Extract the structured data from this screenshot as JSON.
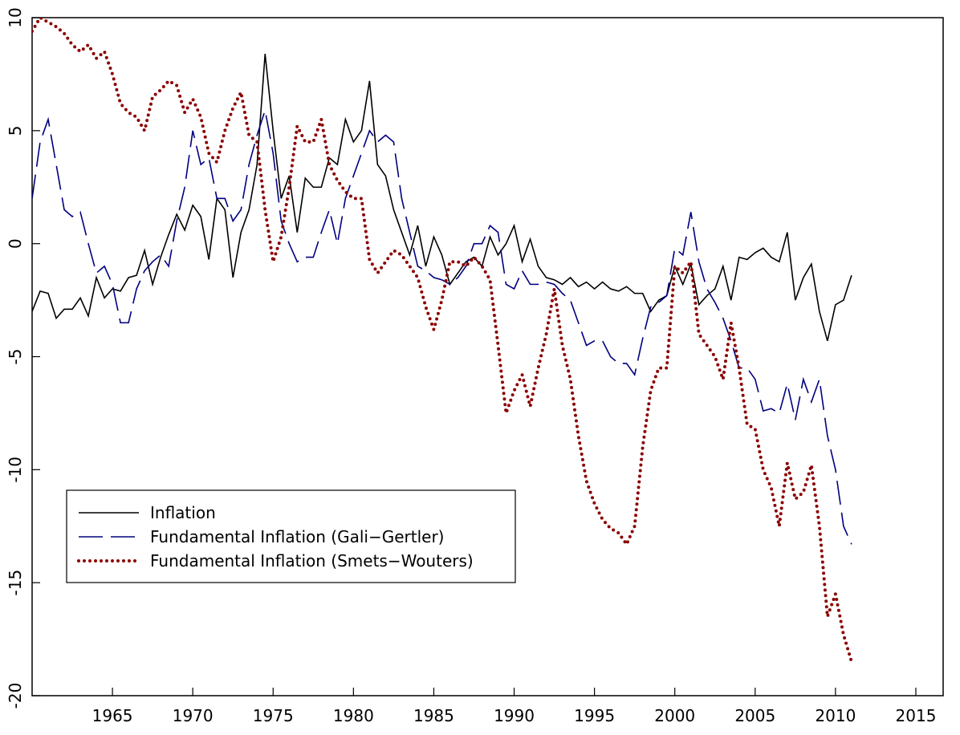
{
  "chart_data": {
    "type": "line",
    "x": [
      1960,
      1960.5,
      1961,
      1961.5,
      1962,
      1962.5,
      1963,
      1963.5,
      1964,
      1964.5,
      1965,
      1965.5,
      1966,
      1966.5,
      1967,
      1967.5,
      1968,
      1968.5,
      1969,
      1969.5,
      1970,
      1970.5,
      1971,
      1971.5,
      1972,
      1972.5,
      1973,
      1973.5,
      1974,
      1974.5,
      1975,
      1975.5,
      1976,
      1976.5,
      1977,
      1977.5,
      1978,
      1978.5,
      1979,
      1979.5,
      1980,
      1980.5,
      1981,
      1981.5,
      1982,
      1982.5,
      1983,
      1983.5,
      1984,
      1984.5,
      1985,
      1985.5,
      1986,
      1986.5,
      1987,
      1987.5,
      1988,
      1988.5,
      1989,
      1989.5,
      1990,
      1990.5,
      1991,
      1991.5,
      1992,
      1992.5,
      1993,
      1993.5,
      1994,
      1994.5,
      1995,
      1995.5,
      1996,
      1996.5,
      1997,
      1997.5,
      1998,
      1998.5,
      1999,
      1999.5,
      2000,
      2000.5,
      2001,
      2001.5,
      2002,
      2002.5,
      2003,
      2003.5,
      2004,
      2004.5,
      2005,
      2005.5,
      2006,
      2006.5,
      2007,
      2007.5,
      2008,
      2008.5,
      2009,
      2009.5,
      2010,
      2010.5,
      2011
    ],
    "series": [
      {
        "name": "Inflation",
        "color": "#000000",
        "style": "solid",
        "values": [
          -3.0,
          -2.1,
          -2.2,
          -3.3,
          -2.9,
          -2.9,
          -2.4,
          -3.2,
          -1.5,
          -2.4,
          -2.0,
          -2.1,
          -1.5,
          -1.4,
          -0.3,
          -1.8,
          -0.6,
          0.4,
          1.3,
          0.6,
          1.7,
          1.2,
          -0.7,
          2.0,
          1.5,
          -1.5,
          0.5,
          1.5,
          3.5,
          8.4,
          5.0,
          2.0,
          3.0,
          0.5,
          2.9,
          2.5,
          2.5,
          3.8,
          3.5,
          5.5,
          4.5,
          5.0,
          7.2,
          3.5,
          3.0,
          1.5,
          0.5,
          -0.5,
          0.8,
          -1.0,
          0.3,
          -0.5,
          -1.8,
          -1.3,
          -0.8,
          -0.6,
          -1.0,
          0.3,
          -0.5,
          0.0,
          0.8,
          -0.8,
          0.2,
          -1.0,
          -1.5,
          -1.6,
          -1.8,
          -1.5,
          -1.9,
          -1.7,
          -2.0,
          -1.7,
          -2.0,
          -2.1,
          -1.9,
          -2.2,
          -2.2,
          -3.0,
          -2.5,
          -2.3,
          -1.0,
          -1.8,
          -0.9,
          -2.7,
          -2.3,
          -2.0,
          -1.0,
          -2.5,
          -0.6,
          -0.7,
          -0.4,
          -0.2,
          -0.6,
          -0.8,
          0.5,
          -2.5,
          -1.5,
          -0.9,
          -3.0,
          -4.3,
          -2.7,
          -2.5,
          -1.4
        ]
      },
      {
        "name": "Fundamental Inflation (Gali−Gertler)",
        "color": "#00007f",
        "style": "dashed",
        "values": [
          2.0,
          4.5,
          5.5,
          3.5,
          1.5,
          1.2,
          1.4,
          0.0,
          -1.3,
          -1.0,
          -1.8,
          -3.5,
          -3.5,
          -2.0,
          -1.2,
          -0.8,
          -0.5,
          -1.0,
          1.0,
          2.5,
          5.0,
          3.5,
          3.8,
          2.0,
          2.0,
          1.0,
          1.5,
          3.5,
          4.8,
          5.9,
          4.0,
          1.0,
          0.0,
          -0.8,
          -0.6,
          -0.6,
          0.5,
          1.5,
          0.0,
          2.0,
          3.0,
          4.0,
          5.0,
          4.5,
          4.8,
          4.5,
          2.0,
          0.5,
          -1.0,
          -1.2,
          -1.5,
          -1.6,
          -1.8,
          -1.5,
          -1.0,
          0.0,
          0.0,
          0.8,
          0.5,
          -1.8,
          -2.0,
          -1.2,
          -1.8,
          -1.8,
          -1.7,
          -1.8,
          -2.2,
          -2.5,
          -3.5,
          -4.5,
          -4.3,
          -4.3,
          -5.0,
          -5.3,
          -5.3,
          -5.8,
          -4.2,
          -2.8,
          -2.6,
          -2.3,
          -0.2,
          -0.5,
          1.4,
          -0.8,
          -2.0,
          -2.6,
          -3.3,
          -4.3,
          -5.5,
          -5.5,
          -6.0,
          -7.4,
          -7.3,
          -7.5,
          -6.2,
          -7.8,
          -6.0,
          -7.0,
          -6.0,
          -8.5,
          -10.0,
          -12.5,
          -13.3
        ]
      },
      {
        "name": "Fundamental Inflation (Smets−Wouters)",
        "color": "#8b0000",
        "style": "dotted",
        "values": [
          9.4,
          10.0,
          9.8,
          9.6,
          9.3,
          8.8,
          8.5,
          8.8,
          8.2,
          8.5,
          7.5,
          6.2,
          5.8,
          5.6,
          5.0,
          6.5,
          6.8,
          7.2,
          7.0,
          5.8,
          6.4,
          5.6,
          4.0,
          3.6,
          5.0,
          6.0,
          6.7,
          4.8,
          4.5,
          1.5,
          -0.8,
          0.3,
          2.5,
          5.2,
          4.5,
          4.5,
          5.5,
          3.5,
          2.8,
          2.3,
          2.0,
          2.0,
          -0.7,
          -1.3,
          -0.8,
          -0.3,
          -0.5,
          -1.0,
          -1.5,
          -2.8,
          -3.8,
          -2.5,
          -0.8,
          -0.8,
          -1.0,
          -0.6,
          -1.0,
          -1.6,
          -4.5,
          -7.5,
          -6.5,
          -5.8,
          -7.2,
          -5.5,
          -4.0,
          -2.0,
          -4.5,
          -6.0,
          -8.5,
          -10.5,
          -11.5,
          -12.2,
          -12.6,
          -12.8,
          -13.3,
          -12.5,
          -9.0,
          -6.5,
          -5.5,
          -5.5,
          -1.0,
          -1.3,
          -0.8,
          -4.0,
          -4.5,
          -5.0,
          -6.0,
          -3.5,
          -5.5,
          -8.0,
          -8.2,
          -10.0,
          -10.8,
          -12.5,
          -9.7,
          -11.3,
          -11.0,
          -9.8,
          -12.5,
          -16.5,
          -15.5,
          -17.3,
          -18.5
        ]
      }
    ],
    "xlim": [
      1960,
      2016.7
    ],
    "xticks": [
      1965,
      1970,
      1975,
      1980,
      1985,
      1990,
      1995,
      2000,
      2005,
      2010,
      2015
    ],
    "ylim": [
      -20,
      10
    ],
    "yticks": [
      -20,
      -15,
      -10,
      -5,
      0,
      5,
      10
    ],
    "grid": false,
    "legend": "lower left"
  }
}
